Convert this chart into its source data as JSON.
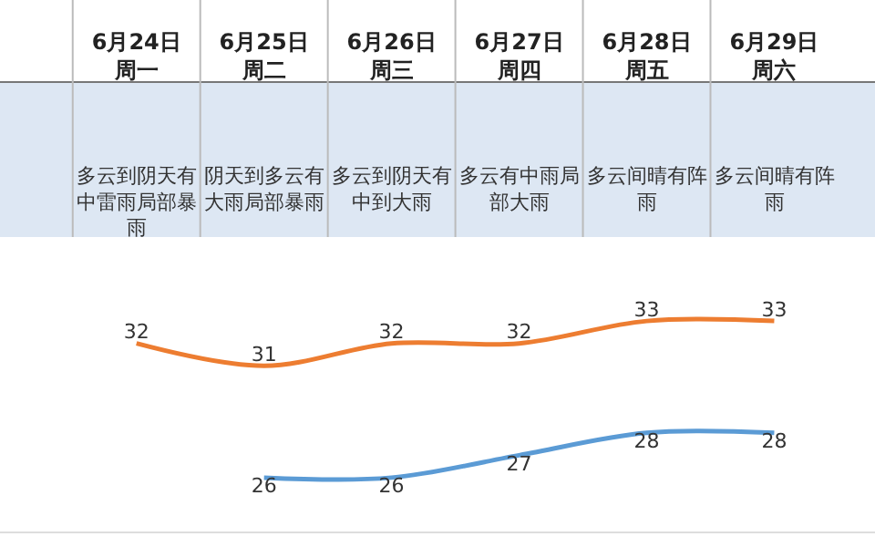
{
  "chart_data": {
    "type": "line",
    "categories": [
      "6月24日周一",
      "6月25日周二",
      "6月26日周三",
      "6月27日周四",
      "6月28日周五",
      "6月29日周六"
    ],
    "series": [
      {
        "color": "#ed7d31",
        "values": [
          32,
          31,
          32,
          32,
          33,
          33
        ]
      },
      {
        "color": "#5b9bd5",
        "values": [
          null,
          26,
          26,
          27,
          28,
          28
        ]
      }
    ],
    "annotations": [
      "多云到阴天有中雷雨局部暴雨",
      "阴天到多云有大雨局部暴雨",
      "多云到阴天有中到大雨",
      "多云有中雨局部大雨",
      "多云间晴有阵雨",
      "多云间晴有阵雨"
    ],
    "data_labels": true,
    "grid": false,
    "marker": "none",
    "line_style": "solid"
  }
}
